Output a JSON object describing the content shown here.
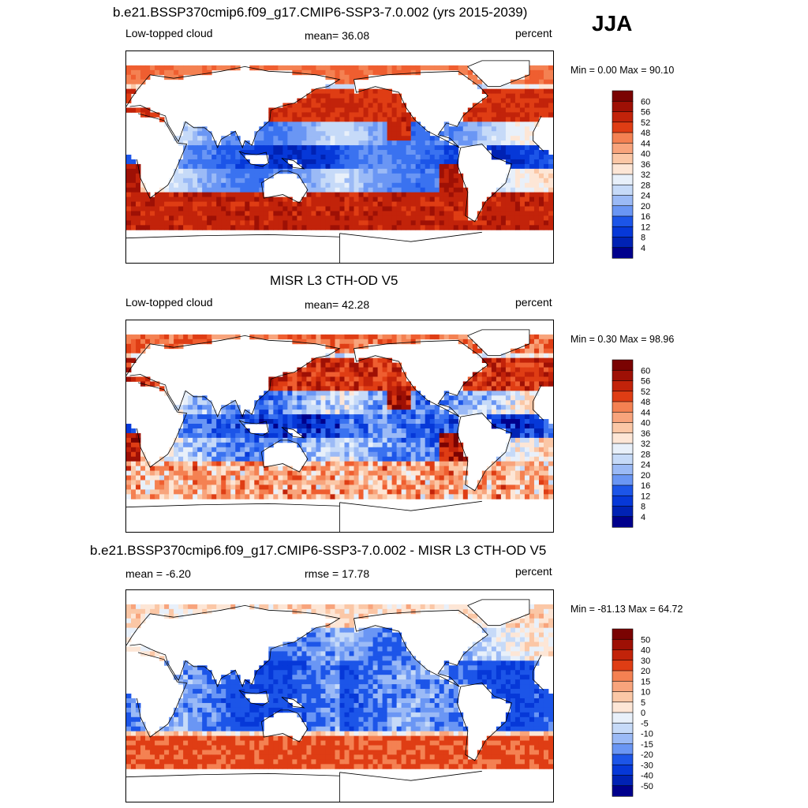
{
  "season": "JJA",
  "palettes": {
    "cloud": [
      "#00008c",
      "#0022b4",
      "#0638d8",
      "#1c55e8",
      "#3a72f0",
      "#6a96f4",
      "#9bbaf6",
      "#c6daf8",
      "#e8f0fa",
      "#fde6d6",
      "#fbc7a6",
      "#f8a47c",
      "#f48152",
      "#ef5e30",
      "#df3d14",
      "#c2230a",
      "#9e1005",
      "#7a0302"
    ],
    "diff": [
      "#00008c",
      "#0022b4",
      "#0638d8",
      "#1c55e8",
      "#3a72f0",
      "#6a96f4",
      "#9bbaf6",
      "#c6daf8",
      "#e8f0fa",
      "#fde6d6",
      "#fbc7a6",
      "#f8a47c",
      "#f48152",
      "#ef5e30",
      "#df3d14",
      "#c2230a",
      "#9e1005",
      "#7a0302"
    ]
  },
  "panels": [
    {
      "title": "b.e21.BSSP370cmip6.f09_g17.CMIP6-SSP3-7.0.002 (yrs 2015-2039)",
      "left_label": "Low-topped cloud",
      "center_label": "mean=  36.08",
      "right_label": "percent",
      "minmax": "Min =   0.00 Max =  90.10",
      "colorbar_labels": [
        "60",
        "56",
        "52",
        "48",
        "44",
        "40",
        "36",
        "32",
        "28",
        "24",
        "20",
        "16",
        "12",
        "8",
        "4"
      ],
      "kind": "model"
    },
    {
      "title": "MISR L3 CTH-OD V5",
      "left_label": "Low-topped cloud",
      "center_label": "mean=  42.28",
      "right_label": "percent",
      "minmax": "Min =   0.30 Max =  98.96",
      "colorbar_labels": [
        "60",
        "56",
        "52",
        "48",
        "44",
        "40",
        "36",
        "32",
        "28",
        "24",
        "20",
        "16",
        "12",
        "8",
        "4"
      ],
      "kind": "obs"
    },
    {
      "title": "b.e21.BSSP370cmip6.f09_g17.CMIP6-SSP3-7.0.002 - MISR L3 CTH-OD V5",
      "left_label": "mean =  -6.20",
      "center_label": "rmse =  17.78",
      "right_label": "percent",
      "minmax": "Min = -81.13 Max =  64.72",
      "colorbar_labels": [
        "50",
        "40",
        "30",
        "20",
        "15",
        "10",
        "5",
        "0",
        "-5",
        "-10",
        "-15",
        "-20",
        "-30",
        "-40",
        "-50"
      ],
      "kind": "diff"
    }
  ]
}
